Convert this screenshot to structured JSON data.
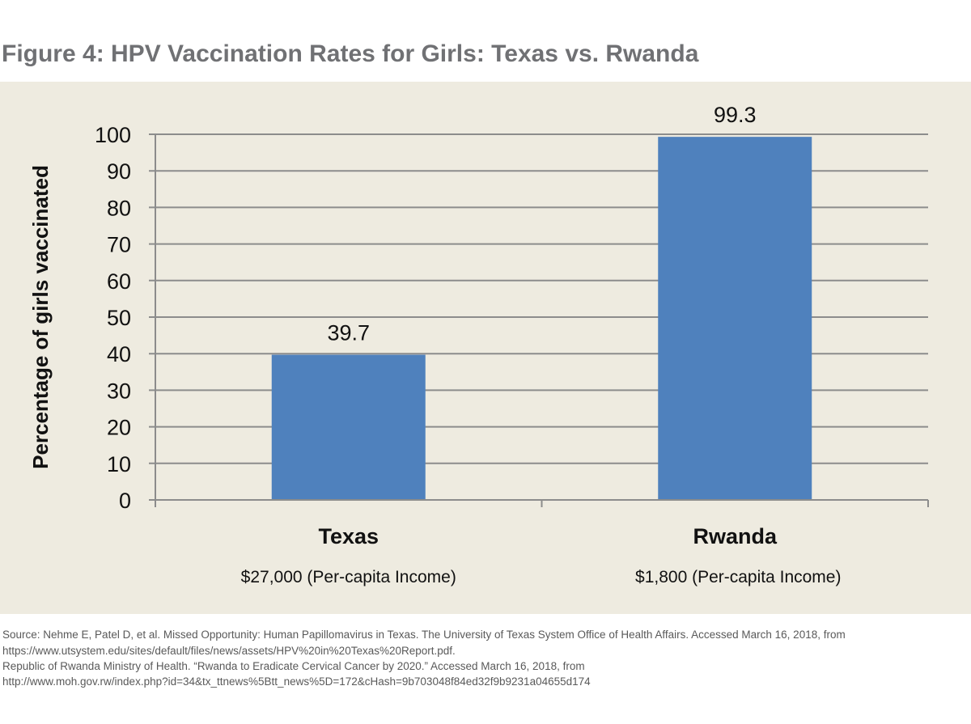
{
  "title": "Figure 4: HPV Vaccination Rates for Girls: Texas vs. Rwanda",
  "chart_data": {
    "type": "bar",
    "title": "Figure 4: HPV Vaccination Rates for Girls: Texas vs. Rwanda",
    "categories": [
      "Texas",
      "Rwanda"
    ],
    "category_sublabels": [
      "$27,000 (Per-capita Income)",
      "$1,800 (Per-capita Income)"
    ],
    "values": [
      39.7,
      99.3
    ],
    "data_labels": [
      "39.7",
      "99.3"
    ],
    "xlabel": "",
    "ylabel": "Percentage of girls vaccinated",
    "ylim": [
      0,
      100
    ],
    "yticks": [
      "0",
      "10",
      "20",
      "30",
      "40",
      "50",
      "60",
      "70",
      "80",
      "90",
      "100"
    ],
    "grid": true,
    "bar_color": "#4f81bd",
    "background_color": "#eeebe0"
  },
  "source": [
    "Source: Nehme E, Patel D, et al. Missed Opportunity: Human Papillomavirus in Texas. The University of Texas System Office of Health Affairs. Accessed March 16, 2018, from",
    "https://www.utsystem.edu/sites/default/files/news/assets/HPV%20in%20Texas%20Report.pdf.",
    "Republic of Rwanda Ministry of Health. “Rwanda to Eradicate Cervical Cancer by 2020.” Accessed March 16, 2018, from",
    "http://www.moh.gov.rw/index.php?id=34&tx_ttnews%5Btt_news%5D=172&cHash=9b703048f84ed32f9b9231a04655d174"
  ]
}
